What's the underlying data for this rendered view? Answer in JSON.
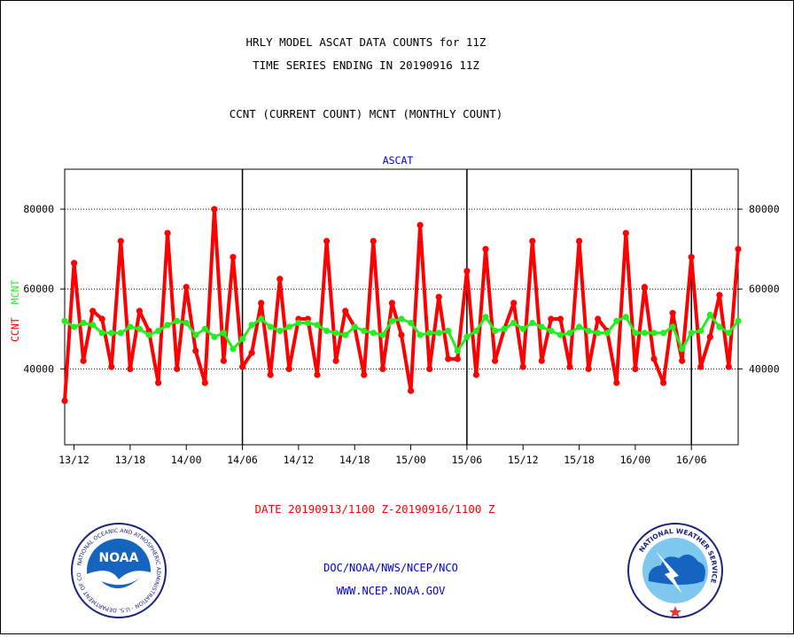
{
  "header": {
    "title_line1": "HRLY MODEL ASCAT DATA COUNTS for 11Z",
    "title_line2": "TIME SERIES ENDING IN 20190916 11Z",
    "subtitle": "CCNT (CURRENT COUNT) MCNT (MONTHLY COUNT)"
  },
  "footer": {
    "date_range": "DATE 20190913/1100 Z-20190916/1100 Z",
    "org_line": "DOC/NOAA/NWS/NCEP/NCO",
    "url_line": "WWW.NCEP.NOAA.GOV"
  },
  "logos": {
    "noaa_text": "NOAA",
    "noaa_ring_text": "NATIONAL OCEANIC AND ATMOSPHERIC ADMINISTRATION · U.S. DEPARTMENT OF COMMERCE",
    "nws_ring_text": "NATIONAL WEATHER SERVICE"
  },
  "colors": {
    "ccnt": "#ff0000",
    "mcnt": "#22ee22",
    "axis": "#000000",
    "plot_title": "#0000cc",
    "footer_text": "#0000cc",
    "date_text": "#ff0000"
  },
  "chart_data": {
    "type": "line",
    "title": "ASCAT",
    "ylabel_ccnt": "CCNT",
    "ylabel_mcnt": "MCNT",
    "ylim": [
      21000,
      90000
    ],
    "yticks": [
      40000,
      60000,
      80000
    ],
    "ytick_labels": [
      "40000",
      "60000",
      "80000"
    ],
    "x_interval_hours": 1,
    "xticks": [
      {
        "hour": 1,
        "label": "13/12"
      },
      {
        "hour": 7,
        "label": "13/18"
      },
      {
        "hour": 13,
        "label": "14/00"
      },
      {
        "hour": 19,
        "label": "14/06"
      },
      {
        "hour": 25,
        "label": "14/12"
      },
      {
        "hour": 31,
        "label": "14/18"
      },
      {
        "hour": 37,
        "label": "15/00"
      },
      {
        "hour": 43,
        "label": "15/06"
      },
      {
        "hour": 49,
        "label": "15/12"
      },
      {
        "hour": 55,
        "label": "15/18"
      },
      {
        "hour": 61,
        "label": "16/00"
      },
      {
        "hour": 67,
        "label": "16/06"
      }
    ],
    "day_dividers_hours": [
      19,
      43,
      67
    ],
    "grid": "horizontal dotted at y ticks",
    "series": [
      {
        "name": "CCNT",
        "values": [
          32000,
          66500,
          42000,
          54500,
          52500,
          40500,
          72000,
          40000,
          54500,
          49500,
          36500,
          74000,
          40000,
          60500,
          44500,
          36500,
          80000,
          42000,
          68000,
          40500,
          44000,
          56500,
          38500,
          62500,
          40000,
          52500,
          52500,
          38500,
          72000,
          42000,
          54500,
          50500,
          38500,
          72000,
          40000,
          56500,
          48500,
          34500,
          76000,
          40000,
          58000,
          42500,
          42500,
          64500,
          38500,
          70000,
          42000,
          50000,
          56500,
          40500,
          72000,
          42000,
          52500,
          52500,
          40500,
          72000,
          40000,
          52500,
          49500,
          36500,
          74000,
          40000,
          60500,
          42500,
          36500,
          54000,
          42000,
          68000,
          40500,
          48000,
          58500,
          40500,
          70000
        ]
      },
      {
        "name": "MCNT",
        "values": [
          52000,
          50500,
          51500,
          51000,
          49000,
          49000,
          49000,
          50500,
          50000,
          48500,
          49500,
          51000,
          52000,
          51500,
          48500,
          50000,
          48000,
          49000,
          45000,
          47500,
          51000,
          52500,
          50500,
          49500,
          50500,
          51500,
          51500,
          51000,
          49500,
          49000,
          48500,
          50500,
          49500,
          49000,
          48500,
          52000,
          52500,
          51500,
          48500,
          49000,
          49000,
          49500,
          44500,
          48000,
          49500,
          53000,
          49500,
          50000,
          51500,
          50000,
          51500,
          50500,
          49500,
          48500,
          49000,
          50500,
          49500,
          49000,
          49000,
          52000,
          53000,
          49000,
          49000,
          49000,
          49000,
          50500,
          45000,
          49000,
          49500,
          53500,
          50500,
          49000,
          52000
        ]
      }
    ]
  }
}
